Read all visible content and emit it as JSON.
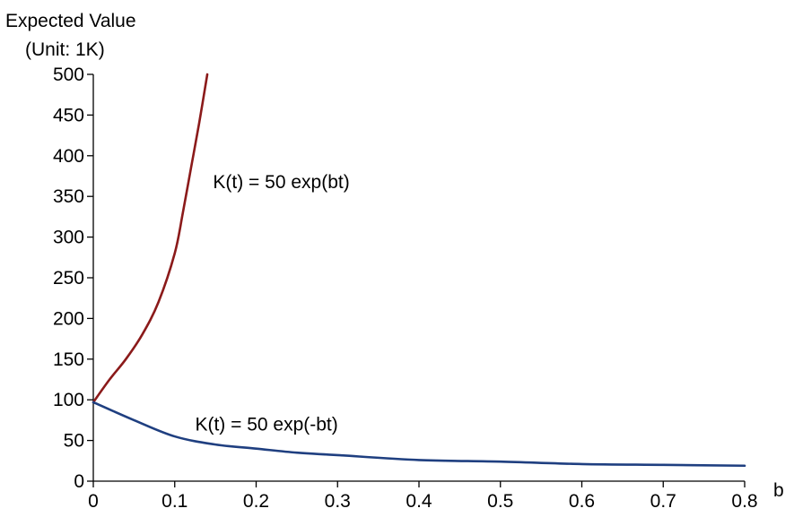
{
  "chart_data": {
    "type": "line",
    "title": "",
    "ylabel_line1": "Expected Value",
    "ylabel_line2": "(Unit: 1K)",
    "xlabel": "b",
    "xlim": [
      0,
      0.8
    ],
    "ylim": [
      0,
      500
    ],
    "x_ticks": [
      "0",
      "0.1",
      "0.2",
      "0.3",
      "0.4",
      "0.5",
      "0.6",
      "0.7",
      "0.8"
    ],
    "y_ticks": [
      "0",
      "50",
      "100",
      "150",
      "200",
      "250",
      "300",
      "350",
      "400",
      "450",
      "500"
    ],
    "grid": false,
    "series": [
      {
        "name": "K(t) = 50 exp(bt)",
        "color": "#8b1a1a",
        "x": [
          0,
          0.02,
          0.04,
          0.06,
          0.08,
          0.1,
          0.11,
          0.12,
          0.13,
          0.14
        ],
        "y": [
          97,
          125,
          150,
          180,
          220,
          280,
          330,
          385,
          440,
          500
        ]
      },
      {
        "name": "K(t) = 50 exp(-bt)",
        "color": "#1f3f80",
        "x": [
          0,
          0.05,
          0.1,
          0.15,
          0.2,
          0.25,
          0.3,
          0.4,
          0.5,
          0.6,
          0.7,
          0.8
        ],
        "y": [
          97,
          75,
          55,
          45,
          40,
          35,
          32,
          26,
          24,
          21,
          20,
          19
        ]
      }
    ],
    "annotations": [
      {
        "text": "K(t) = 50 exp(bt)",
        "x": 0.147,
        "y": 360
      },
      {
        "text": "K(t) = 50 exp(-bt)",
        "x": 0.125,
        "y": 62
      }
    ]
  }
}
